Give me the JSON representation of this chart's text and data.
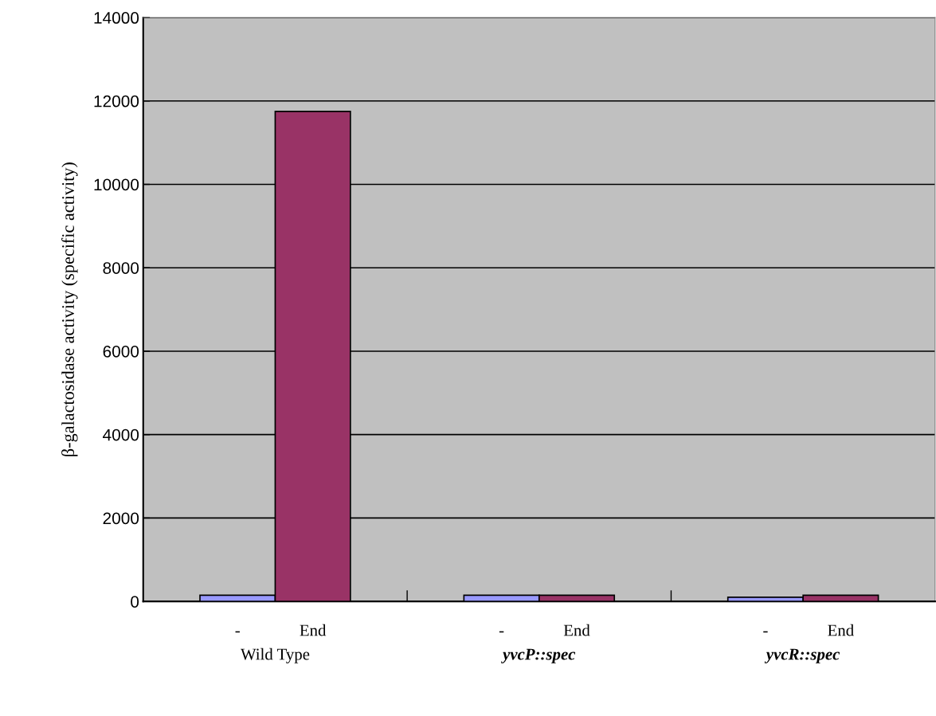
{
  "chart_data": {
    "type": "bar",
    "ylabel": "β-galactosidase activity (specific activity)",
    "categories": [
      "Wild Type",
      "yvcP::spec",
      "yvcR::spec"
    ],
    "series": [
      {
        "name": "-",
        "color": "#9999ff",
        "values": [
          150,
          150,
          100
        ]
      },
      {
        "name": "End",
        "color": "#993366",
        "values": [
          11750,
          150,
          150
        ]
      }
    ],
    "ylim": [
      0,
      14000
    ],
    "yticks": [
      0,
      2000,
      4000,
      6000,
      8000,
      10000,
      12000,
      14000
    ],
    "grid": "y",
    "legend": false
  }
}
